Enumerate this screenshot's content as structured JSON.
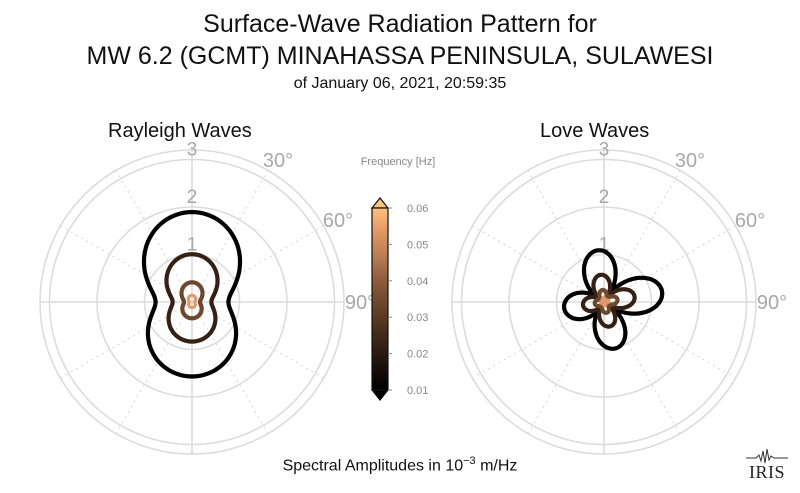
{
  "header": {
    "title_line1": "Surface-Wave Radiation Pattern for",
    "title_line2": "MW 6.2 (GCMT) MINAHASSA PENINSULA, SULAWESI",
    "subtitle": "of January 06, 2021, 20:59:35"
  },
  "footer": {
    "label_prefix": "Spectral Amplitudes in 10",
    "label_exponent": "−3",
    "label_suffix": " m/Hz"
  },
  "logo": {
    "text": "IRIS"
  },
  "colors": {
    "grid": "#dcdcdc",
    "tick_text": "#a8a8a8",
    "colormap": [
      "#000000",
      "#2a1a10",
      "#5a3a24",
      "#8c5c3c",
      "#bf7f54",
      "#ea9e6a",
      "#ffc27c"
    ]
  },
  "chart_data": [
    {
      "type": "polar",
      "panel_title": "Rayleigh Waves",
      "r_ticks": [
        "1",
        "2",
        "3"
      ],
      "r_max": 3.2,
      "angle_labels": [
        "30°",
        "60°",
        "90°"
      ],
      "angular_grid_deg": [
        0,
        30,
        60,
        90,
        120,
        150,
        180,
        210,
        240,
        270,
        300,
        330
      ],
      "series": [
        {
          "frequency_hz": 0.01,
          "pattern": "rayleigh",
          "scale": 1.6
        },
        {
          "frequency_hz": 0.02,
          "pattern": "rayleigh",
          "scale": 0.85
        },
        {
          "frequency_hz": 0.03,
          "pattern": "rayleigh",
          "scale": 0.35
        },
        {
          "frequency_hz": 0.05,
          "pattern": "rayleigh",
          "scale": 0.12
        }
      ]
    },
    {
      "type": "polar",
      "panel_title": "Love Waves",
      "r_ticks": [
        "1",
        "2",
        "3"
      ],
      "r_max": 3.2,
      "angle_labels": [
        "30°",
        "60°",
        "90°"
      ],
      "angular_grid_deg": [
        0,
        30,
        60,
        90,
        120,
        150,
        180,
        210,
        240,
        270,
        300,
        330
      ],
      "series": [
        {
          "frequency_hz": 0.01,
          "pattern": "love",
          "scale": 0.95
        },
        {
          "frequency_hz": 0.02,
          "pattern": "love",
          "scale": 0.5
        },
        {
          "frequency_hz": 0.03,
          "pattern": "love",
          "scale": 0.22
        },
        {
          "frequency_hz": 0.05,
          "pattern": "love",
          "scale": 0.08
        }
      ]
    }
  ],
  "colorbar": {
    "title": "Frequency [Hz]",
    "min": 0.01,
    "max": 0.06,
    "ticks": [
      "0.06",
      "0.05",
      "0.04",
      "0.03",
      "0.02",
      "0.01"
    ],
    "tick_values": [
      0.06,
      0.05,
      0.04,
      0.03,
      0.02,
      0.01
    ]
  }
}
